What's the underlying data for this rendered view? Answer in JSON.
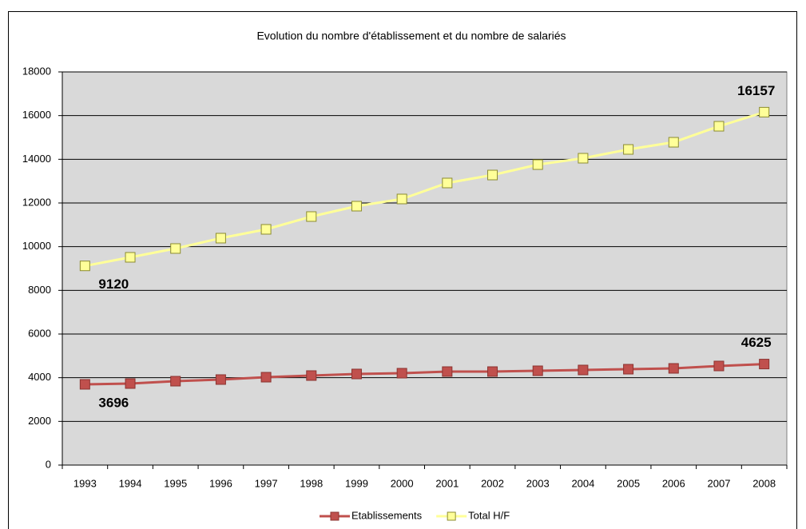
{
  "chart_data": {
    "type": "line",
    "title": "Evolution du nombre d'établissement et du nombre de salariés",
    "categories": [
      "1993",
      "1994",
      "1995",
      "1996",
      "1997",
      "1998",
      "1999",
      "2000",
      "2001",
      "2002",
      "2003",
      "2004",
      "2005",
      "2006",
      "2007",
      "2008"
    ],
    "series": [
      {
        "name": "Etablissements",
        "color": "#c0504d",
        "marker_color": "#c0504d",
        "values": [
          3696,
          3732,
          3841,
          3915,
          4024,
          4098,
          4171,
          4207,
          4280,
          4280,
          4317,
          4354,
          4390,
          4427,
          4537,
          4625
        ],
        "value_labels": [
          "3696",
          null,
          null,
          null,
          null,
          null,
          null,
          null,
          null,
          null,
          null,
          null,
          null,
          null,
          null,
          "4625"
        ]
      },
      {
        "name": "Total H/F",
        "color": "#ffff99",
        "marker_color": "#ffff99",
        "values": [
          9120,
          9512,
          9915,
          10390,
          10793,
          11378,
          11854,
          12183,
          12915,
          13280,
          13756,
          14049,
          14451,
          14780,
          15512,
          16157
        ],
        "value_labels": [
          "9120",
          null,
          null,
          null,
          null,
          null,
          null,
          null,
          null,
          null,
          null,
          null,
          null,
          null,
          null,
          "16157"
        ]
      }
    ],
    "ylim": [
      0,
      18000
    ],
    "yticks": [
      0,
      2000,
      4000,
      6000,
      8000,
      10000,
      12000,
      14000,
      16000,
      18000
    ],
    "grid": true,
    "legend": "bottom"
  }
}
